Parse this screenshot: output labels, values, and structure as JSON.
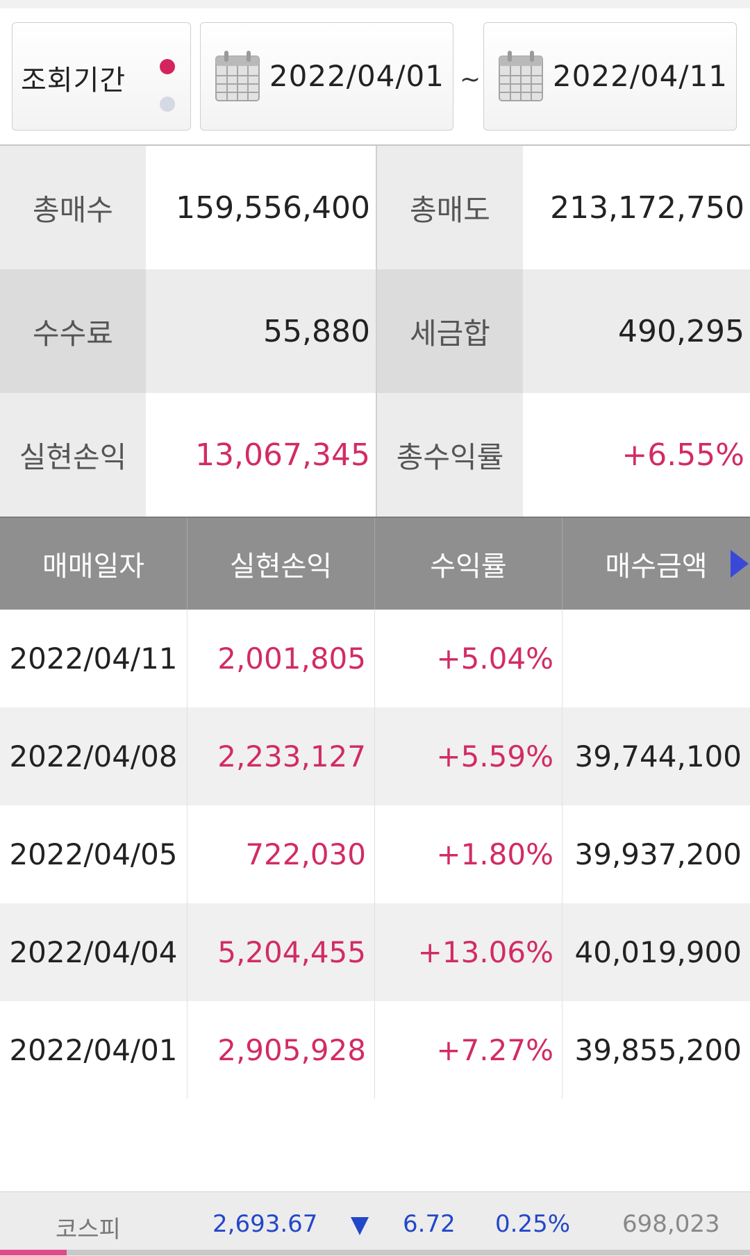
{
  "period": {
    "label": "조회기간",
    "start_date": "2022/04/01",
    "separator": "~",
    "end_date": "2022/04/11"
  },
  "summary": {
    "total_buy": {
      "label": "총매수",
      "value": "159,556,400"
    },
    "total_sell": {
      "label": "총매도",
      "value": "213,172,750"
    },
    "fee": {
      "label": "수수료",
      "value": "55,880"
    },
    "tax_sum": {
      "label": "세금합",
      "value": "490,295"
    },
    "realized_pnl": {
      "label": "실현손익",
      "value": "13,067,345"
    },
    "total_return": {
      "label": "총수익률",
      "value": "+6.55%"
    }
  },
  "trades": {
    "headers": [
      "매매일자",
      "실현손익",
      "수익률",
      "매수금액"
    ],
    "rows": [
      {
        "date": "2022/04/11",
        "pnl": "2,001,805",
        "rate": "+5.04%",
        "buy_amount": ""
      },
      {
        "date": "2022/04/08",
        "pnl": "2,233,127",
        "rate": "+5.59%",
        "buy_amount": "39,744,100"
      },
      {
        "date": "2022/04/05",
        "pnl": "722,030",
        "rate": "+1.80%",
        "buy_amount": "39,937,200"
      },
      {
        "date": "2022/04/04",
        "pnl": "5,204,455",
        "rate": "+13.06%",
        "buy_amount": "40,019,900"
      },
      {
        "date": "2022/04/01",
        "pnl": "2,905,928",
        "rate": "+7.27%",
        "buy_amount": "39,855,200"
      }
    ]
  },
  "ticker": {
    "name": "코스피",
    "index": "2,693.67",
    "direction_icon": "down-triangle-icon",
    "change": "6.72",
    "rate": "0.25%",
    "volume": "698,023"
  },
  "colors": {
    "positive": "#d22b66",
    "negative": "#2347c9",
    "header_bg": "#8f8f8f",
    "active_dot": "#d4245d"
  }
}
